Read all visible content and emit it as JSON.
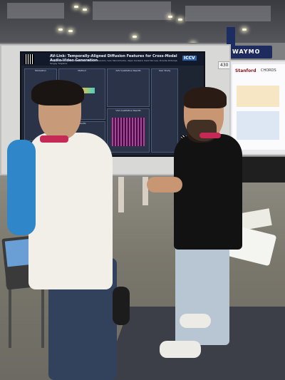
{
  "scene": "Conference poster session",
  "main_poster": {
    "title": "AV-Link: Temporally-Aligned Diffusion Features for Cross-Modal Audio-Video Generation",
    "authors": "Moayed Haji-Ali, Willi Menapace, Aliaksandr Siarohin, Ivan Skorokhodov, Alper Canberk, Kwot Sin Lee, Vicente Ordonez, Sergey Tulyakov",
    "affiliations": "Snap Inc.  Rice University",
    "badge": "ICCV",
    "sections": [
      "Motivation",
      "Method",
      "Results",
      "A2V Qualitative Results",
      "V2A Qualitative Results",
      "User Study"
    ]
  },
  "board_number": "430",
  "right_poster": {
    "institution": "Stanford",
    "title": "CHORDS"
  },
  "banner": {
    "waymo": "WAYMO"
  },
  "colors": {
    "poster_bg": "#1d2533",
    "lanyard": "#c42a55",
    "jacket": "#2f86c8"
  }
}
